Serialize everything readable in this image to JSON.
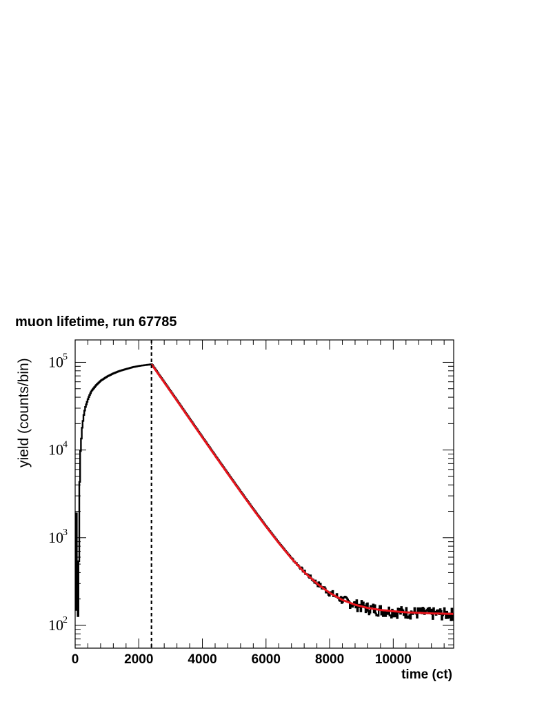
{
  "chart_data": {
    "type": "line",
    "title": "muon lifetime, run 67785",
    "xlabel": "time (ct)",
    "ylabel": "yield (counts/bin)",
    "xlim": [
      0,
      11900
    ],
    "ylim": [
      55,
      180000
    ],
    "yscale": "log",
    "xticks": [
      0,
      2000,
      4000,
      6000,
      8000,
      10000
    ],
    "xtick_labels": [
      "0",
      "2000",
      "4000",
      "6000",
      "8000",
      "10000"
    ],
    "yticks": [
      100,
      1000,
      10000,
      100000
    ],
    "ytick_labels": [
      {
        "base": "10",
        "exp": "2"
      },
      {
        "base": "10",
        "exp": "3"
      },
      {
        "base": "10",
        "exp": "4"
      },
      {
        "base": "10",
        "exp": "5"
      }
    ],
    "grid": false,
    "legend": "none",
    "marker_line": {
      "x": 2400,
      "style": "dashed",
      "color": "#000000"
    },
    "series": [
      {
        "kind": "histogram",
        "color": "#000000",
        "x": [
          0,
          30,
          60,
          90,
          120,
          150,
          200,
          250,
          300,
          400,
          500,
          650,
          800,
          1000,
          1200,
          1400,
          1600,
          1800,
          2000,
          2200,
          2400,
          2800,
          3200,
          3600,
          4000,
          4400,
          4800,
          5200,
          5600,
          6000,
          6400,
          6800,
          7200,
          7600,
          8000,
          8400,
          8800,
          9200,
          9600,
          10000,
          10400,
          10800,
          11200,
          11600,
          11900
        ],
        "y": [
          150,
          2800,
          140,
          120,
          3000,
          9000,
          17000,
          24000,
          30000,
          39000,
          47000,
          55000,
          62000,
          69000,
          75000,
          80000,
          84000,
          88000,
          91000,
          93000,
          95000,
          59000,
          36500,
          22500,
          13900,
          8600,
          5350,
          3340,
          2100,
          1340,
          870,
          580,
          405,
          300,
          235,
          195,
          172,
          158,
          150,
          145,
          141,
          139,
          137,
          136,
          135
        ]
      },
      {
        "kind": "fit",
        "name": "",
        "color": "#e8141c",
        "x": [
          2400,
          2800,
          3200,
          3600,
          4000,
          4400,
          4800,
          5200,
          5600,
          6000,
          6400,
          6800,
          7200,
          7600,
          8000,
          8400,
          8800,
          9200,
          9600,
          10000,
          10400,
          10800,
          11200,
          11600,
          11900
        ],
        "y": [
          95000,
          59000,
          36500,
          22500,
          13900,
          8600,
          5350,
          3340,
          2100,
          1340,
          870,
          580,
          405,
          300,
          235,
          195,
          172,
          158,
          150,
          145,
          141,
          139,
          137,
          136,
          135
        ]
      }
    ]
  }
}
